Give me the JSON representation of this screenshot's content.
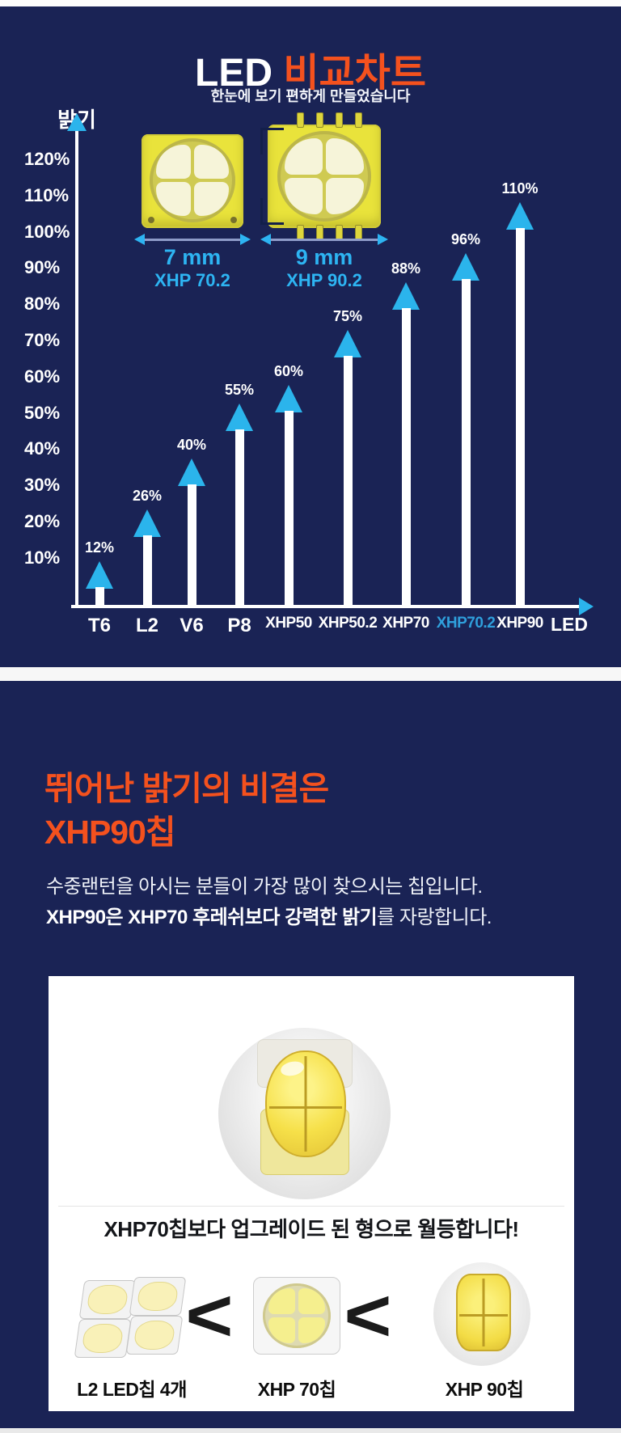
{
  "colors": {
    "navy_background": "#1a2355",
    "accent_orange": "#f4511e",
    "accent_cyan": "#2bb4ec",
    "highlight_category_cyan": "#2f9fdc",
    "bar_shaft_white": "#ffffff"
  },
  "chart_section": {
    "title_led": "LED",
    "title_rest": "비교차트",
    "subtitle": "한눈에 보기 편하게 만들었습니다",
    "y_axis_title": "밝기",
    "chips": [
      {
        "size": "7 mm",
        "name": "XHP 70.2"
      },
      {
        "size": "9 mm",
        "name": "XHP 90.2"
      }
    ]
  },
  "chart_data": {
    "type": "bar",
    "title": "LED 비교차트",
    "subtitle": "한눈에 보기 편하게 만들었습니다",
    "categories": [
      "T6",
      "L2",
      "V6",
      "P8",
      "XHP50",
      "XHP50.2",
      "XHP70",
      "XHP70.2",
      "XHP90"
    ],
    "values": [
      12,
      26,
      40,
      55,
      60,
      75,
      88,
      96,
      110
    ],
    "value_labels": [
      "12%",
      "26%",
      "40%",
      "55%",
      "60%",
      "75%",
      "88%",
      "96%",
      "110%"
    ],
    "highlighted_category": "XHP70.2",
    "xlabel": "LED",
    "ylabel": "밝기",
    "ylim": [
      0,
      120
    ],
    "y_ticks": [
      "120%",
      "110%",
      "100%",
      "90%",
      "80%",
      "70%",
      "60%",
      "50%",
      "40%",
      "30%",
      "20%",
      "10%"
    ],
    "grid": false,
    "legend": "none",
    "bar_style": "white shaft with cyan arrowhead pointing up"
  },
  "info_section": {
    "heading_line1": "뛰어난 밝기의 비결은",
    "heading_line2": "XHP90칩",
    "body_line1": "수중랜턴을 아시는 분들이 가장 많이 찾으시는 칩입니다.",
    "body_line2_bold": "XHP90은 XHP70 후레쉬보다 강력한 밝기",
    "body_line2_rest": "를 자랑합니다.",
    "card": {
      "caption": "XHP70칩보다 업그레이드 된 형으로 월등합니다!",
      "compare_symbol": "<",
      "items": [
        {
          "label": "L2 LED칩 4개"
        },
        {
          "label": "XHP 70칩"
        },
        {
          "label": "XHP 90칩"
        }
      ]
    }
  }
}
